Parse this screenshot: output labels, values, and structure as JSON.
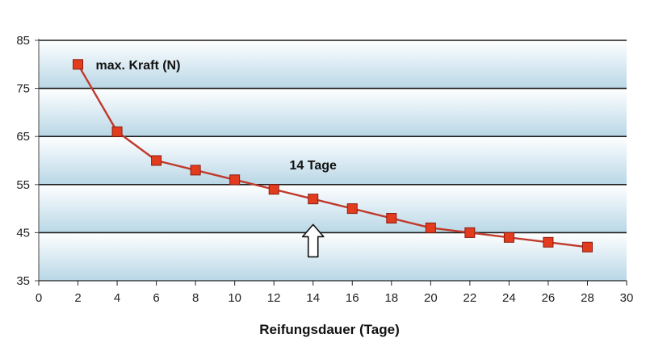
{
  "chart_data": {
    "type": "line",
    "title": "",
    "xlabel": "Reifungsdauer (Tage)",
    "ylabel": "",
    "xlim": [
      0,
      30
    ],
    "ylim": [
      35,
      85
    ],
    "x_ticks": [
      "0",
      "2",
      "4",
      "6",
      "8",
      "10",
      "12",
      "14",
      "16",
      "18",
      "20",
      "22",
      "24",
      "26",
      "28",
      "30"
    ],
    "y_ticks": [
      "35",
      "45",
      "55",
      "65",
      "75",
      "85"
    ],
    "grid": true,
    "series": [
      {
        "name": "max. Kraft (N)",
        "x": [
          2,
          4,
          6,
          8,
          10,
          12,
          14,
          16,
          18,
          20,
          22,
          24,
          26,
          28
        ],
        "values": [
          80,
          66,
          60,
          58,
          56,
          54,
          52,
          50,
          48,
          46,
          45,
          44,
          43,
          42
        ]
      }
    ],
    "annotations": [
      {
        "text": "14 Tage",
        "x": 14,
        "y": 59
      },
      {
        "text": "↑",
        "x": 14,
        "y": 45
      }
    ],
    "colors": {
      "line": "#c0392b",
      "marker": "#e33b1e",
      "marker_edge": "#8a1d10",
      "band_light": "#ffffff",
      "band_blue": "#b9d7e6",
      "grid": "#1c1c1c"
    }
  }
}
